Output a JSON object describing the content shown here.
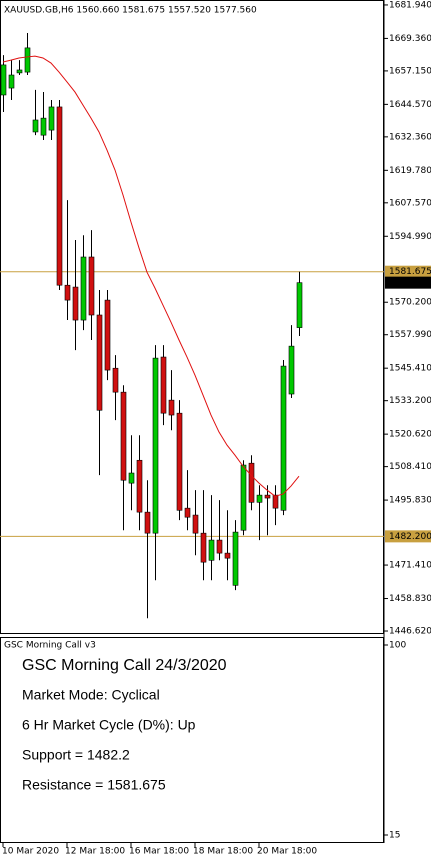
{
  "chart_data": {
    "type": "candlestick",
    "header": "XAUUSD.GB,H6  1560.660 1581.675 1557.520 1577.560",
    "categories": [
      "10 Mar 2020",
      null,
      null,
      null,
      null,
      null,
      null,
      null,
      "12 Mar 18:00",
      null,
      null,
      null,
      null,
      null,
      null,
      null,
      "16 Mar 18:00",
      null,
      null,
      null,
      null,
      null,
      null,
      null,
      "18 Mar 18:00",
      null,
      null,
      null,
      null,
      null,
      null,
      null,
      "20 Mar 18:00",
      null,
      null,
      null,
      null,
      null
    ],
    "open": [
      1648.1,
      1650.7,
      1656.4,
      1656.7,
      1634.2,
      1633.0,
      1634.9,
      1643.6,
      1576.6,
      1575.9,
      1563.5,
      1587.2,
      1565.4,
      1571.0,
      1545.4,
      1536.4,
      1502.2,
      1510.8,
      1491.3,
      1483.4,
      1549.6,
      1533.4,
      1528.5,
      1492.8,
      1490.2,
      1483.4,
      1473.2,
      1480.8,
      1475.9,
      1463.8,
      1484.5,
      1509.7,
      1495.0,
      1497.7,
      1497.7,
      1492.0,
      1535.7,
      1560.66
    ],
    "high": [
      1663.1,
      1661.2,
      1661.2,
      1671.4,
      1650.0,
      1649.2,
      1646.2,
      1646.2,
      1608.6,
      1593.6,
      1595.4,
      1597.3,
      1574.8,
      1574.8,
      1550.3,
      1539.0,
      1520.2,
      1520.2,
      1503.3,
      1554.1,
      1554.1,
      1544.7,
      1533.4,
      1507.1,
      1499.6,
      1499.6,
      1497.7,
      1495.8,
      1492.0,
      1488.3,
      1510.8,
      1512.7,
      1501.4,
      1501.4,
      1501.4,
      1548.5,
      1561.6,
      1581.675
    ],
    "low": [
      1641.7,
      1646.2,
      1655.6,
      1655.6,
      1633.0,
      1631.2,
      1631.2,
      1574.8,
      1563.5,
      1552.2,
      1559.7,
      1556.0,
      1505.2,
      1540.9,
      1525.9,
      1484.5,
      1492.0,
      1484.5,
      1451.4,
      1465.7,
      1524.0,
      1522.1,
      1488.3,
      1484.5,
      1475.1,
      1465.7,
      1465.7,
      1473.2,
      1465.7,
      1462.0,
      1482.6,
      1492.0,
      1480.8,
      1482.6,
      1486.4,
      1490.2,
      1534.2,
      1557.52
    ],
    "close": [
      1659.4,
      1655.6,
      1657.5,
      1665.8,
      1638.7,
      1639.4,
      1643.6,
      1576.6,
      1571.0,
      1563.5,
      1587.2,
      1565.4,
      1529.6,
      1544.7,
      1536.4,
      1503.3,
      1506.0,
      1491.3,
      1483.4,
      1549.2,
      1528.5,
      1527.8,
      1492.0,
      1489.4,
      1483.4,
      1472.5,
      1480.8,
      1475.9,
      1474.0,
      1483.8,
      1509.0,
      1495.0,
      1497.7,
      1496.6,
      1492.8,
      1546.2,
      1553.7,
      1577.56
    ],
    "up_color": "#00c800",
    "down_color": "#d01010",
    "ma": {
      "color": "#e01010",
      "values": [
        1660.5,
        1661.2,
        1662.0,
        1662.4,
        1662.7,
        1662.0,
        1660.1,
        1656.7,
        1653.0,
        1649.2,
        1644.3,
        1639.4,
        1634.2,
        1627.4,
        1619.9,
        1610.5,
        1600.3,
        1590.6,
        1581.5,
        1575.5,
        1569.1,
        1562.7,
        1556.0,
        1549.6,
        1542.8,
        1535.3,
        1527.8,
        1521.4,
        1516.5,
        1512.7,
        1508.6,
        1505.2,
        1502.2,
        1499.6,
        1497.3,
        1498.1,
        1501.1,
        1504.8
      ]
    },
    "ylim": [
      1445.5,
      1683.8
    ],
    "yticks": [
      {
        "value": 1681.94,
        "label": "1681.940"
      },
      {
        "value": 1669.36,
        "label": "1669.360"
      },
      {
        "value": 1657.15,
        "label": "1657.150"
      },
      {
        "value": 1644.57,
        "label": "1644.570"
      },
      {
        "value": 1632.36,
        "label": "1632.360"
      },
      {
        "value": 1619.78,
        "label": "1619.780"
      },
      {
        "value": 1607.57,
        "label": "1607.570"
      },
      {
        "value": 1594.99,
        "label": "1594.990"
      },
      {
        "value": 1570.2,
        "label": "1570.200"
      },
      {
        "value": 1557.99,
        "label": "1557.990"
      },
      {
        "value": 1545.41,
        "label": "1545.410"
      },
      {
        "value": 1533.2,
        "label": "1533.200"
      },
      {
        "value": 1520.62,
        "label": "1520.620"
      },
      {
        "value": 1508.41,
        "label": "1508.410"
      },
      {
        "value": 1495.83,
        "label": "1495.830"
      },
      {
        "value": 1471.41,
        "label": "1471.410"
      },
      {
        "value": 1458.83,
        "label": "1458.830"
      },
      {
        "value": 1446.62,
        "label": "1446.620"
      }
    ],
    "levels": [
      {
        "value": 1581.675,
        "color": "#c8a040"
      },
      {
        "value": 1482.2,
        "label": "1482.200",
        "color": "#c8a040"
      }
    ],
    "last_price": {
      "value": 1577.56,
      "label": "1577.560"
    }
  },
  "indicator": {
    "title": "GSC Morning Call v3",
    "ylim": [
      11.42,
      103.58
    ],
    "yticks": [
      100,
      15
    ],
    "heading": "GSC Morning Call 24/3/2020",
    "heading_color": "#c8a02c",
    "lines": [
      "Market Mode: Cyclical",
      "6 Hr Market Cycle (D%): Up",
      "Support = 1482.2",
      "Resistance = 1581.675"
    ]
  }
}
